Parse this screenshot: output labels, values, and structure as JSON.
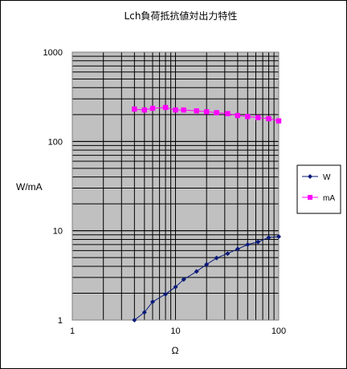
{
  "chart_data": {
    "type": "line",
    "title": "Lch負荷抵抗値対出力特性",
    "xlabel": "Ω",
    "ylabel": "W/mA",
    "x_scale": "log",
    "y_scale": "log",
    "xlim": [
      1,
      100
    ],
    "ylim": [
      1,
      1000
    ],
    "x_tick_labels": [
      "1",
      "10",
      "100"
    ],
    "y_tick_labels": [
      "1",
      "10",
      "100",
      "1000"
    ],
    "grid": true,
    "legend_position": "right",
    "x": [
      4,
      5,
      6,
      8,
      10,
      12,
      16,
      20,
      25,
      32,
      40,
      50,
      63,
      80,
      100
    ],
    "series": [
      {
        "name": "W",
        "color": "#0a1a7a",
        "marker": "diamond",
        "values": [
          1.0,
          1.22,
          1.6,
          1.95,
          2.35,
          2.85,
          3.5,
          4.2,
          4.95,
          5.55,
          6.25,
          7.0,
          7.5,
          8.4,
          8.6
        ]
      },
      {
        "name": "mA",
        "color": "#ff00ff",
        "marker": "square",
        "values": [
          230,
          225,
          235,
          240,
          225,
          225,
          220,
          215,
          210,
          205,
          195,
          190,
          185,
          180,
          170
        ]
      }
    ]
  }
}
